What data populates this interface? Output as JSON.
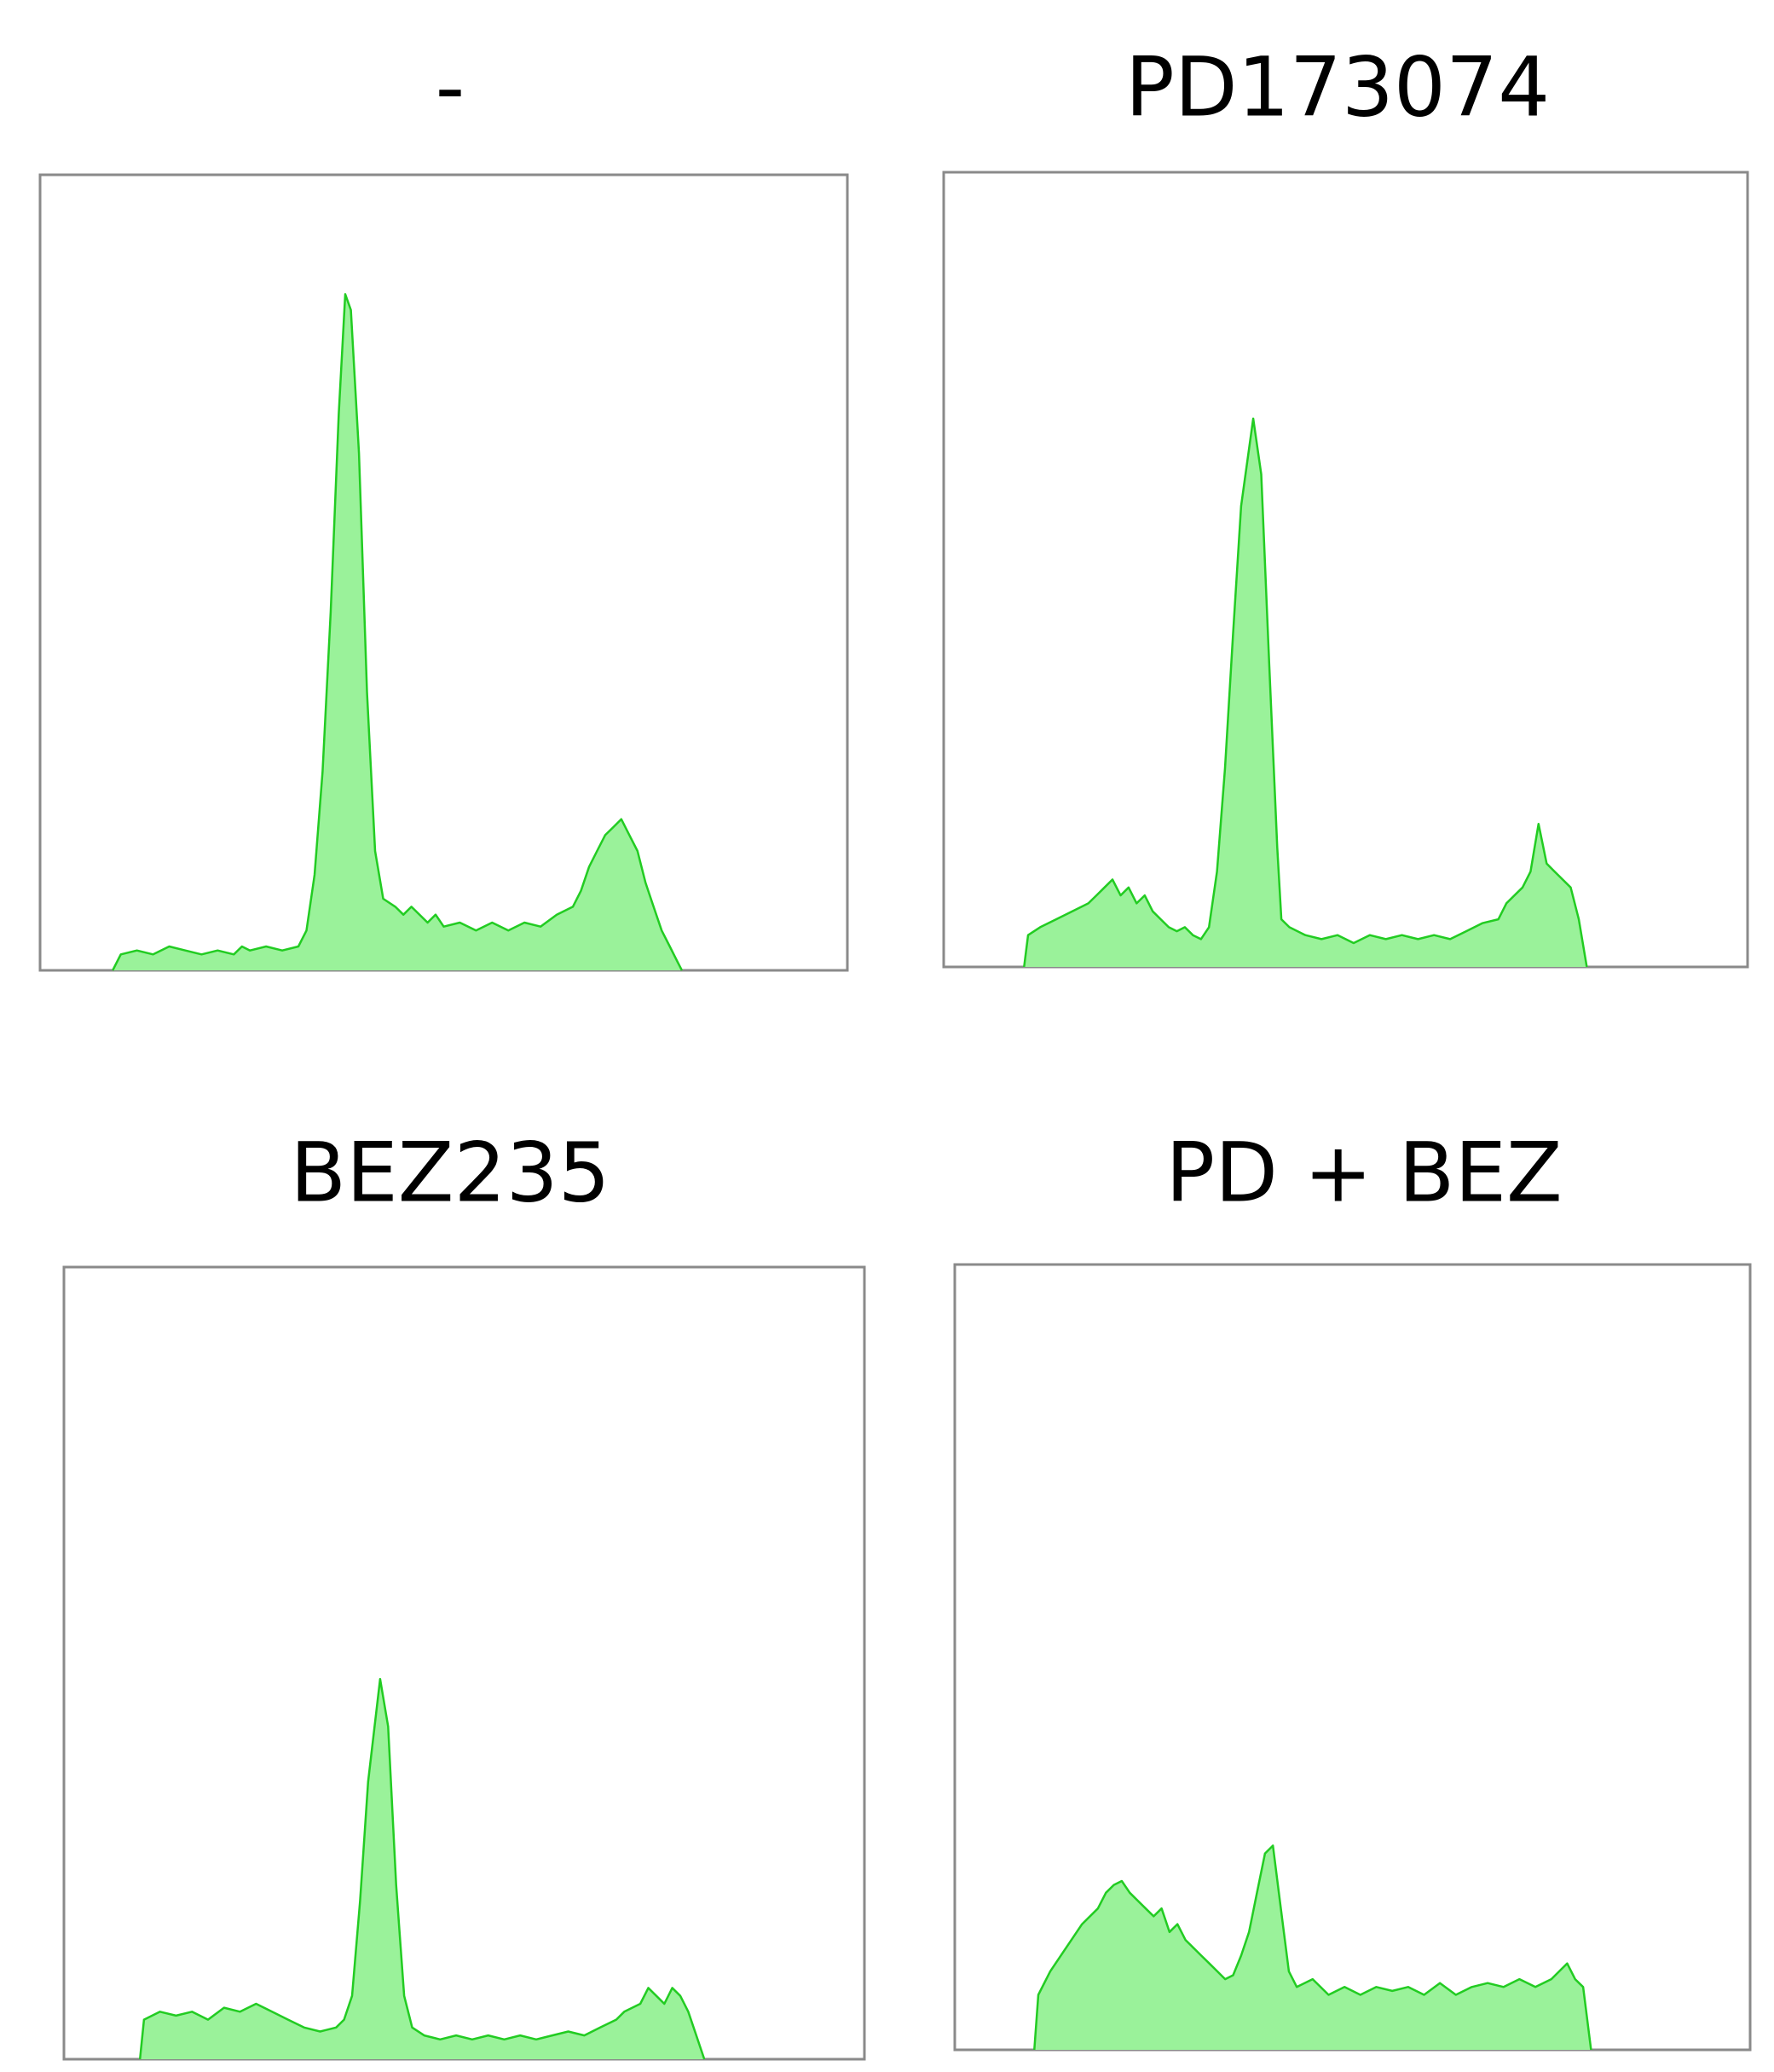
{
  "chart_data": [
    {
      "type": "area",
      "title": "-",
      "color": "#9af29a",
      "edge_color": "#22cc22",
      "xlim": [
        0,
        100
      ],
      "ylim": [
        0,
        100
      ],
      "x": [
        9,
        10,
        12,
        14,
        16,
        18,
        20,
        22,
        24,
        25,
        26,
        28,
        30,
        32,
        33,
        34,
        35,
        36,
        37,
        37.8,
        38.5,
        39.5,
        40.5,
        41.5,
        42.5,
        44,
        45,
        46,
        48,
        49,
        50,
        52,
        54,
        56,
        58,
        60,
        62,
        64,
        66,
        67,
        68,
        69,
        70,
        71,
        72,
        73,
        74,
        75,
        76,
        77,
        78,
        79,
        79.5
      ],
      "values": [
        0,
        2,
        2.5,
        2,
        3,
        2.5,
        2,
        2.5,
        2,
        3,
        2.5,
        3,
        2.5,
        3,
        5,
        12,
        25,
        45,
        70,
        85,
        83,
        65,
        35,
        15,
        9,
        8,
        7,
        8,
        6,
        7,
        5.5,
        6,
        5,
        6,
        5,
        6,
        5.5,
        7,
        8,
        10,
        13,
        15,
        17,
        18,
        19,
        17,
        15,
        11,
        8,
        5,
        3,
        1,
        0
      ]
    },
    {
      "type": "area",
      "title": "PD173074",
      "color": "#9af29a",
      "edge_color": "#22cc22",
      "xlim": [
        0,
        100
      ],
      "ylim": [
        0,
        100
      ],
      "x": [
        10,
        10.5,
        12,
        14,
        16,
        18,
        19,
        20,
        21,
        22,
        23,
        24,
        25,
        26,
        27,
        28,
        29,
        30,
        31,
        32,
        33,
        34,
        35,
        36,
        37,
        38.5,
        39.5,
        40.5,
        41.5,
        42,
        43,
        45,
        47,
        49,
        51,
        53,
        55,
        57,
        59,
        61,
        63,
        65,
        67,
        69,
        70,
        71,
        72,
        73,
        74,
        75,
        76,
        77,
        78,
        79,
        80
      ],
      "values": [
        0,
        4,
        5,
        6,
        7,
        8,
        9,
        10,
        11,
        9,
        10,
        8,
        9,
        7,
        6,
        5,
        4.5,
        5,
        4,
        3.5,
        5,
        12,
        25,
        42,
        58,
        69,
        62,
        38,
        15,
        6,
        5,
        4,
        3.5,
        4,
        3,
        4,
        3.5,
        4,
        3.5,
        4,
        3.5,
        4.5,
        5.5,
        6,
        8,
        9,
        10,
        12,
        18,
        13,
        12,
        11,
        10,
        6,
        0
      ]
    },
    {
      "type": "area",
      "title": "BEZ235",
      "color": "#9af29a",
      "edge_color": "#22cc22",
      "xlim": [
        0,
        100
      ],
      "ylim": [
        0,
        100
      ],
      "x": [
        9.5,
        10,
        12,
        14,
        16,
        18,
        20,
        22,
        24,
        26,
        28,
        30,
        32,
        34,
        35,
        36,
        37,
        38,
        39.5,
        40.5,
        41.5,
        42.5,
        43.5,
        45,
        47,
        49,
        51,
        53,
        55,
        57,
        59,
        61,
        63,
        65,
        67,
        69,
        70,
        72,
        73,
        74,
        75,
        76,
        77,
        78,
        79,
        80
      ],
      "values": [
        0,
        5,
        6,
        5.5,
        6,
        5,
        6.5,
        6,
        7,
        6,
        5,
        4,
        3.5,
        4,
        5,
        8,
        20,
        35,
        48,
        42,
        22,
        8,
        4,
        3,
        2.5,
        3,
        2.5,
        3,
        2.5,
        3,
        2.5,
        3,
        3.5,
        3,
        4,
        5,
        6,
        7,
        9,
        8,
        7,
        9,
        8,
        6,
        3,
        0
      ]
    },
    {
      "type": "area",
      "title": "PD + BEZ",
      "color": "#9af29a",
      "edge_color": "#22cc22",
      "xlim": [
        0,
        100
      ],
      "ylim": [
        0,
        100
      ],
      "x": [
        10,
        10.5,
        12,
        14,
        16,
        18,
        19,
        20,
        21,
        22,
        23,
        24,
        25,
        26,
        27,
        28,
        29,
        30,
        31,
        32,
        33,
        34,
        35,
        36,
        37,
        38,
        39,
        40,
        41,
        42,
        43,
        45,
        47,
        49,
        51,
        53,
        55,
        57,
        59,
        61,
        63,
        65,
        67,
        69,
        71,
        73,
        75,
        76,
        77,
        78,
        79,
        80
      ],
      "values": [
        0,
        7,
        10,
        13,
        16,
        18,
        20,
        21,
        21.5,
        20,
        19,
        18,
        17,
        18,
        15,
        16,
        14,
        13,
        12,
        11,
        10,
        9,
        9.5,
        12,
        15,
        20,
        25,
        26,
        18,
        10,
        8,
        9,
        7,
        8,
        7,
        8,
        7.5,
        8,
        7,
        8.5,
        7,
        8,
        8.5,
        8,
        9,
        8,
        9,
        10,
        11,
        9,
        8,
        0
      ]
    }
  ]
}
